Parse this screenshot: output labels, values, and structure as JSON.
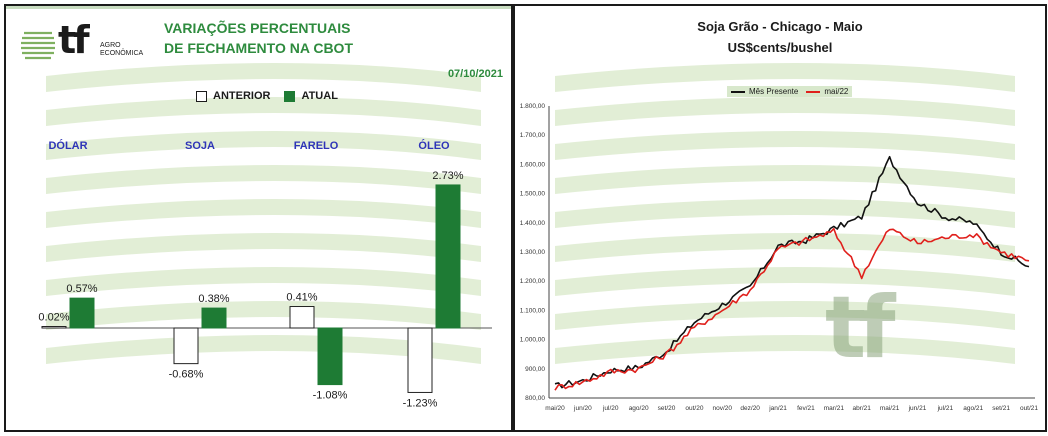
{
  "left": {
    "logo_mark": "tf",
    "logo_sub_1": "AGRO",
    "logo_sub_2": "ECONÔMICA",
    "title_line1": "VARIAÇÕES PERCENTUAIS",
    "title_line2": "DE FECHAMENTO NA CBOT",
    "date": "07/10/2021",
    "legend_anterior": "ANTERIOR",
    "legend_atual": "ATUAL"
  },
  "right": {
    "title_line1": "Soja Grão - Chicago - Maio",
    "title_line2": "US$cents/bushel",
    "legend_a": "Mês Presente",
    "legend_b": "mai/22",
    "watermark": "tf"
  },
  "colors": {
    "green": "#1e7b34",
    "title_green": "#2e8b3e",
    "blue_label": "#2e34b8",
    "red": "#e0201c",
    "black": "#111111",
    "bg_band": "#d8e8c8"
  },
  "chart_data": [
    {
      "type": "bar",
      "categories": [
        "DÓLAR",
        "SOJA",
        "FARELO",
        "ÓLEO"
      ],
      "series": [
        {
          "name": "ANTERIOR",
          "values": [
            0.02,
            -0.68,
            0.41,
            -1.23
          ],
          "labels": [
            "0.02%",
            "-0.68%",
            "0.41%",
            "-1.23%"
          ]
        },
        {
          "name": "ATUAL",
          "values": [
            0.57,
            0.38,
            -1.08,
            2.73
          ],
          "labels": [
            "0.57%",
            "0.38%",
            "-1.08%",
            "2.73%"
          ]
        }
      ],
      "title": "VARIAÇÕES PERCENTUAIS DE FECHAMENTO NA CBOT",
      "legend": "top"
    },
    {
      "type": "line",
      "title": "Soja Grão - Chicago - Maio",
      "ylabel": "US$cents/bushel",
      "ylim": [
        800,
        1800
      ],
      "yticks": [
        "800,00",
        "900,00",
        "1.000,00",
        "1.100,00",
        "1.200,00",
        "1.300,00",
        "1.400,00",
        "1.500,00",
        "1.600,00",
        "1.700,00",
        "1.800,00"
      ],
      "x": [
        "mai/20",
        "jun/20",
        "jul/20",
        "ago/20",
        "set/20",
        "out/20",
        "nov/20",
        "dez/20",
        "jan/21",
        "fev/21",
        "mar/21",
        "abr/21",
        "mai/21",
        "jun/21",
        "jul/21",
        "ago/21",
        "set/21",
        "out/21"
      ],
      "series": [
        {
          "name": "Mês Presente",
          "values": [
            840,
            860,
            895,
            905,
            960,
            1060,
            1120,
            1180,
            1320,
            1340,
            1380,
            1420,
            1620,
            1470,
            1420,
            1400,
            1300,
            1250
          ]
        },
        {
          "name": "mai/22",
          "values": [
            835,
            855,
            890,
            900,
            950,
            1040,
            1100,
            1170,
            1310,
            1340,
            1370,
            1220,
            1380,
            1330,
            1350,
            1360,
            1300,
            1270
          ]
        }
      ],
      "grid": false,
      "legend": "top"
    }
  ]
}
